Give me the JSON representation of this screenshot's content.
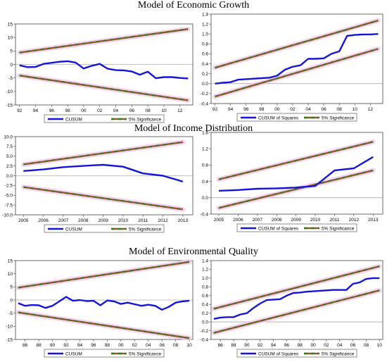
{
  "titles": {
    "growth": "Model of Economic Growth",
    "income": "Model of Income Distribution",
    "environment": "Model of Environmental Quality"
  },
  "colors": {
    "stat_line": "#1515d8",
    "band_line": "#a0522d",
    "band_dash": "#3a7d1e",
    "band_halo": "#f4c8ef",
    "zero_line": "#888888",
    "frame": "#444444"
  },
  "chart_data": [
    {
      "id": "growth-cusum",
      "type": "line",
      "x_type": "year",
      "x": [
        1992,
        1993,
        1994,
        1995,
        1996,
        1997,
        1998,
        1999,
        2000,
        2001,
        2002,
        2003,
        2004,
        2005,
        2006,
        2007,
        2008,
        2009,
        2010,
        2011,
        2012,
        2013
      ],
      "xlim": [
        1991.5,
        2013.6
      ],
      "xticks": [
        1992,
        1994,
        1996,
        1998,
        2000,
        2002,
        2004,
        2006,
        2008,
        2010,
        2012
      ],
      "xticklabels": [
        "92",
        "94",
        "96",
        "98",
        "00",
        "02",
        "04",
        "06",
        "08",
        "10",
        "12"
      ],
      "ylim": [
        -15,
        15
      ],
      "yticks": [
        -15,
        -10,
        -5,
        0,
        5,
        10,
        15
      ],
      "yticklabels": [
        "-15",
        "-10",
        "-5",
        "0",
        "5",
        "10",
        "15"
      ],
      "series": [
        {
          "name": "CUSUM",
          "role": "stat",
          "values": [
            -0.3,
            -1.0,
            -0.9,
            0.2,
            0.6,
            1.0,
            1.2,
            0.7,
            -1.5,
            -0.5,
            0.2,
            -1.6,
            -2.1,
            -2.2,
            -2.6,
            -3.8,
            -2.7,
            -5.1,
            -4.7,
            -4.7,
            -5.0,
            -5.2
          ]
        },
        {
          "name": "5% Significance",
          "role": "band",
          "start": 4.4,
          "end": 13.1
        },
        {
          "name": "5% Significance",
          "role": "band",
          "start": -4.1,
          "end": -13.3
        }
      ],
      "legend": [
        "CUSUM",
        "5% Significance"
      ]
    },
    {
      "id": "growth-cusumsq",
      "type": "line",
      "x_type": "year",
      "x": [
        1992,
        1993,
        1994,
        1995,
        1996,
        1997,
        1998,
        1999,
        2000,
        2001,
        2002,
        2003,
        2004,
        2005,
        2006,
        2007,
        2008,
        2009,
        2010,
        2011,
        2012,
        2013
      ],
      "xlim": [
        1991.5,
        2013.6
      ],
      "xticks": [
        1992,
        1994,
        1996,
        1998,
        2000,
        2002,
        2004,
        2006,
        2008,
        2010,
        2012
      ],
      "xticklabels": [
        "92",
        "94",
        "96",
        "98",
        "00",
        "02",
        "04",
        "06",
        "08",
        "10",
        "12"
      ],
      "ylim": [
        -0.4,
        1.4
      ],
      "yticks": [
        -0.4,
        -0.2,
        0.0,
        0.2,
        0.4,
        0.6,
        0.8,
        1.0,
        1.2,
        1.4
      ],
      "yticklabels": [
        "-0.4",
        "-0.2",
        "0.0",
        "0.2",
        "0.4",
        "0.6",
        "0.8",
        "1.0",
        "1.2",
        "1.4"
      ],
      "series": [
        {
          "name": "CUSUM of Squares",
          "role": "stat",
          "values": [
            0.0,
            0.02,
            0.03,
            0.08,
            0.09,
            0.1,
            0.11,
            0.12,
            0.16,
            0.28,
            0.34,
            0.37,
            0.5,
            0.5,
            0.51,
            0.6,
            0.65,
            0.96,
            0.98,
            0.99,
            0.99,
            1.0
          ]
        },
        {
          "name": "5% Significance",
          "role": "band",
          "start": 0.32,
          "end": 1.27
        },
        {
          "name": "5% Significance",
          "role": "band",
          "start": -0.26,
          "end": 0.7
        }
      ],
      "legend": [
        "CUSUM of Squares",
        "5% Significance"
      ]
    },
    {
      "id": "income-cusum",
      "type": "line",
      "x_type": "year",
      "x": [
        2005,
        2006,
        2007,
        2008,
        2009,
        2010,
        2011,
        2012,
        2013
      ],
      "xlim": [
        2004.6,
        2013.5
      ],
      "xticks": [
        2005,
        2006,
        2007,
        2008,
        2009,
        2010,
        2011,
        2012,
        2013
      ],
      "xticklabels": [
        "2005",
        "2006",
        "2007",
        "2008",
        "2009",
        "2010",
        "2011",
        "2012",
        "2013"
      ],
      "ylim": [
        -10,
        10
      ],
      "yticks": [
        -10,
        -7.5,
        -5,
        -2.5,
        0,
        2.5,
        5,
        7.5,
        10
      ],
      "yticklabels": [
        "-10.0",
        "-7.5",
        "-5.0",
        "-2.5",
        "0.0",
        "2.5",
        "5.0",
        "7.5",
        "10.0"
      ],
      "series": [
        {
          "name": "CUSUM",
          "role": "stat",
          "values": [
            1.2,
            1.6,
            2.2,
            2.5,
            2.8,
            2.3,
            0.6,
            0.0,
            -1.5
          ]
        },
        {
          "name": "5% Significance",
          "role": "band",
          "start": 2.9,
          "end": 8.6
        },
        {
          "name": "5% Significance",
          "role": "band",
          "start": -2.9,
          "end": -8.6
        }
      ],
      "legend": [
        "CUSUM",
        "5% Significance"
      ]
    },
    {
      "id": "income-cusumsq",
      "type": "line",
      "x_type": "year",
      "x": [
        2005,
        2006,
        2007,
        2008,
        2009,
        2010,
        2011,
        2012,
        2013
      ],
      "xlim": [
        2004.6,
        2013.5
      ],
      "xticks": [
        2005,
        2006,
        2007,
        2008,
        2009,
        2010,
        2011,
        2012,
        2013
      ],
      "xticklabels": [
        "2005",
        "2006",
        "2007",
        "2008",
        "2009",
        "2010",
        "2011",
        "2012",
        "2013"
      ],
      "ylim": [
        -0.4,
        1.6
      ],
      "yticks": [
        -0.4,
        0.0,
        0.4,
        0.8,
        1.2,
        1.6
      ],
      "yticklabels": [
        "-0.4",
        "0.0",
        "0.4",
        "0.8",
        "1.2",
        "1.6"
      ],
      "series": [
        {
          "name": "CUSUM of Squares",
          "role": "stat",
          "values": [
            0.17,
            0.19,
            0.22,
            0.23,
            0.25,
            0.29,
            0.67,
            0.72,
            1.0
          ]
        },
        {
          "name": "5% Significance",
          "role": "band",
          "start": 0.45,
          "end": 1.37
        },
        {
          "name": "5% Significance",
          "role": "band",
          "start": -0.25,
          "end": 0.67
        }
      ],
      "legend": [
        "CUSUM of Squares",
        "5% Significance"
      ]
    },
    {
      "id": "env-cusum",
      "type": "line",
      "x_type": "year",
      "x": [
        1985,
        1986,
        1987,
        1988,
        1989,
        1990,
        1991,
        1992,
        1993,
        1994,
        1995,
        1996,
        1997,
        1998,
        1999,
        2000,
        2001,
        2002,
        2003,
        2004,
        2005,
        2006,
        2007,
        2008,
        2009,
        2010
      ],
      "xlim": [
        1984.6,
        2010.5
      ],
      "xticks": [
        1986,
        1988,
        1990,
        1992,
        1994,
        1996,
        1998,
        2000,
        2002,
        2004,
        2006,
        2008,
        2010
      ],
      "xticklabels": [
        "86",
        "88",
        "90",
        "92",
        "94",
        "96",
        "98",
        "00",
        "02",
        "04",
        "06",
        "08",
        "10"
      ],
      "ylim": [
        -15,
        15
      ],
      "yticks": [
        -15,
        -10,
        -5,
        0,
        5,
        10,
        15
      ],
      "yticklabels": [
        "-15",
        "-10",
        "-5",
        "0",
        "5",
        "10",
        "15"
      ],
      "series": [
        {
          "name": "CUSUM",
          "role": "stat",
          "values": [
            -1.2,
            -2.2,
            -1.9,
            -2.0,
            -3.0,
            -2.2,
            -0.5,
            1.2,
            -0.3,
            0.0,
            -0.4,
            -0.3,
            -2.0,
            -0.2,
            -0.5,
            -1.5,
            -1.0,
            -1.6,
            -2.2,
            -1.8,
            -2.2,
            -3.7,
            -2.6,
            -1.0,
            -0.5,
            -0.3
          ]
        },
        {
          "name": "5% Significance",
          "role": "band",
          "start": 4.7,
          "end": 14.5
        },
        {
          "name": "5% Significance",
          "role": "band",
          "start": -4.7,
          "end": -14.5
        }
      ],
      "legend": [
        "CUSUM",
        "5% Significance"
      ]
    },
    {
      "id": "env-cusumsq",
      "type": "line",
      "x_type": "year",
      "x": [
        1985,
        1986,
        1987,
        1988,
        1989,
        1990,
        1991,
        1992,
        1993,
        1994,
        1995,
        1996,
        1997,
        1998,
        1999,
        2000,
        2001,
        2002,
        2003,
        2004,
        2005,
        2006,
        2007,
        2008,
        2009,
        2010
      ],
      "xlim": [
        1984.6,
        2010.5
      ],
      "xticks": [
        1986,
        1988,
        1990,
        1992,
        1994,
        1996,
        1998,
        2000,
        2002,
        2004,
        2006,
        2008,
        2010
      ],
      "xticklabels": [
        "86",
        "88",
        "90",
        "92",
        "94",
        "96",
        "98",
        "00",
        "02",
        "04",
        "06",
        "08",
        "10"
      ],
      "ylim": [
        -0.4,
        1.4
      ],
      "yticks": [
        -0.4,
        -0.2,
        0.0,
        0.2,
        0.4,
        0.6,
        0.8,
        1.0,
        1.2,
        1.4
      ],
      "yticklabels": [
        "-0.4",
        "-0.2",
        "0.0",
        "0.2",
        "0.4",
        "0.6",
        "0.8",
        "1.0",
        "1.2",
        "1.4"
      ],
      "series": [
        {
          "name": "CUSUM of Squares",
          "role": "stat",
          "values": [
            0.07,
            0.1,
            0.11,
            0.11,
            0.17,
            0.2,
            0.32,
            0.42,
            0.5,
            0.51,
            0.52,
            0.6,
            0.66,
            0.67,
            0.69,
            0.7,
            0.71,
            0.72,
            0.73,
            0.73,
            0.73,
            0.87,
            0.9,
            0.98,
            1.0,
            1.0
          ]
        },
        {
          "name": "5% Significance",
          "role": "band",
          "start": 0.3,
          "end": 1.27
        },
        {
          "name": "5% Significance",
          "role": "band",
          "start": -0.25,
          "end": 0.72
        }
      ],
      "legend": [
        "CUSUM of Squares",
        "5% Significance"
      ]
    }
  ]
}
